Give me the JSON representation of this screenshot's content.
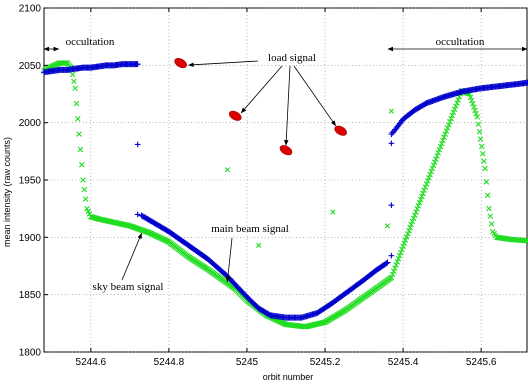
{
  "chart_data": {
    "type": "scatter",
    "title": "",
    "xlabel": "orbit number",
    "ylabel": "mean intensity (raw counts)",
    "xlim": [
      5244.48,
      5245.72
    ],
    "ylim": [
      1800,
      2100
    ],
    "xticks": [
      5244.6,
      5244.8,
      5245,
      5245.2,
      5245.4,
      5245.6
    ],
    "xtick_labels": [
      "5244.6",
      "5244.8",
      "5245",
      "5245.2",
      "5245.4",
      "5245.6"
    ],
    "yticks": [
      1800,
      1850,
      1900,
      1950,
      2000,
      2050,
      2100
    ],
    "ytick_labels": [
      "1800",
      "1850",
      "1900",
      "1950",
      "2000",
      "2050",
      "2100"
    ],
    "grid": true,
    "colors": {
      "main": "#0000cc",
      "sky": "#22dd22",
      "load": "#dd0000"
    },
    "series": [
      {
        "marker": "plus",
        "color": "#0000cc",
        "x": [
          5244.48,
          5244.5,
          5244.52,
          5244.54,
          5244.56,
          5244.58,
          5244.6,
          5244.62,
          5244.64,
          5244.66,
          5244.68,
          5244.7,
          5244.72,
          5244.73,
          5244.76,
          5244.8,
          5244.85,
          5244.9,
          5244.95,
          5245.0,
          5245.03,
          5245.06,
          5245.1,
          5245.14,
          5245.18,
          5245.22,
          5245.26,
          5245.3,
          5245.33,
          5245.36,
          5245.37,
          5245.38,
          5245.4,
          5245.43,
          5245.46,
          5245.5,
          5245.55,
          5245.6,
          5245.65,
          5245.7,
          5245.72
        ],
        "y": [
          2044,
          2045,
          2046,
          2046,
          2047,
          2048,
          2048,
          2049,
          2050,
          2050,
          2051,
          2051,
          2051,
          1919,
          1913,
          1905,
          1893,
          1881,
          1866,
          1848,
          1838,
          1832,
          1830,
          1830,
          1834,
          1843,
          1853,
          1863,
          1871,
          1878,
          1990,
          1994,
          2003,
          2011,
          2017,
          2022,
          2027,
          2030,
          2032,
          2034,
          2035
        ],
        "outliers": [
          [
            5244.72,
            1981
          ],
          [
            5244.72,
            1920
          ],
          [
            5245.37,
            1928
          ],
          [
            5245.37,
            1884
          ],
          [
            5245.37,
            1982
          ]
        ]
      },
      {
        "marker": "cross",
        "color": "#22dd22",
        "x": [
          5244.48,
          5244.5,
          5244.52,
          5244.54,
          5244.55,
          5244.56,
          5244.57,
          5244.58,
          5244.59,
          5244.6,
          5244.62,
          5244.66,
          5244.7,
          5244.75,
          5244.8,
          5244.85,
          5244.9,
          5244.95,
          5244.97,
          5245.0,
          5245.05,
          5245.1,
          5245.15,
          5245.2,
          5245.25,
          5245.3,
          5245.35,
          5245.37,
          5245.55,
          5245.57,
          5245.59,
          5245.61,
          5245.62,
          5245.63,
          5245.64,
          5245.66,
          5245.68,
          5245.72
        ],
        "y": [
          2045,
          2049,
          2052,
          2052,
          2048,
          2030,
          1990,
          1950,
          1925,
          1918,
          1916,
          1913,
          1910,
          1904,
          1896,
          1883,
          1872,
          1860,
          1855,
          1845,
          1832,
          1824,
          1822,
          1826,
          1836,
          1848,
          1860,
          1865,
          2028,
          2025,
          2005,
          1960,
          1925,
          1905,
          1900,
          1899,
          1898,
          1897
        ],
        "outliers": [
          [
            5244.95,
            1959
          ],
          [
            5245.03,
            1893
          ],
          [
            5245.22,
            1922
          ],
          [
            5245.36,
            1910
          ],
          [
            5245.37,
            2010
          ]
        ]
      },
      {
        "marker": "blob",
        "color": "#dd0000",
        "points": [
          [
            5244.83,
            2052
          ],
          [
            5244.97,
            2006
          ],
          [
            5245.1,
            1976
          ],
          [
            5245.24,
            1993
          ]
        ]
      }
    ],
    "annotations": [
      {
        "text": "occultation"
      },
      {
        "text": "occultation"
      },
      {
        "text": "load signal"
      },
      {
        "text": "main beam signal"
      },
      {
        "text": "sky beam signal"
      }
    ]
  }
}
